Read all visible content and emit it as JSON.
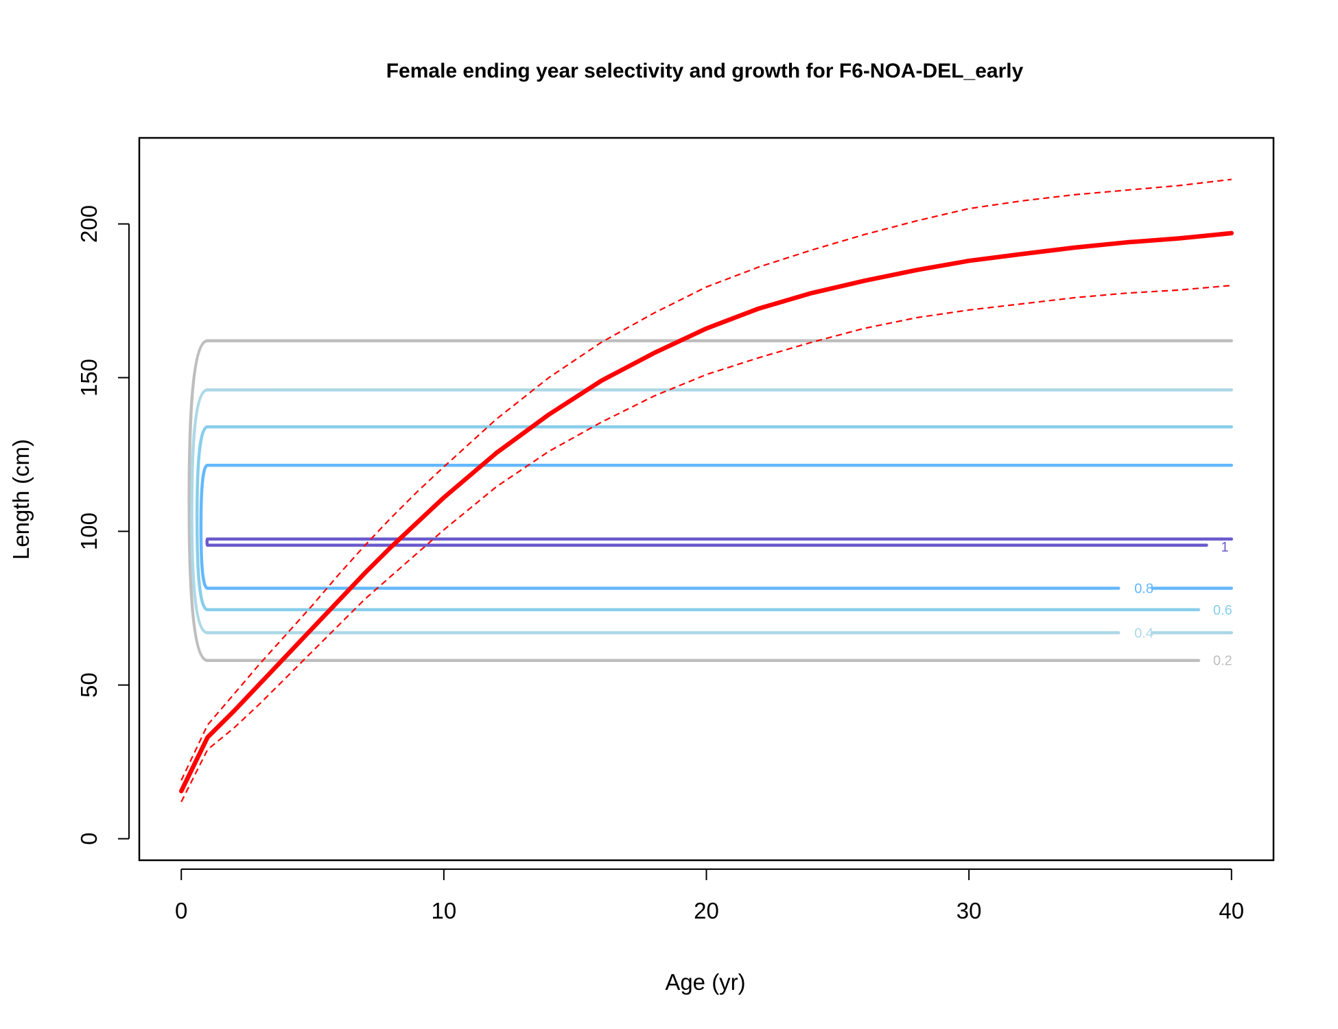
{
  "chart_data": {
    "type": "line",
    "title": "Female ending year selectivity and growth for F6-NOA-DEL_early",
    "xlabel": "Age (yr)",
    "ylabel": "Length (cm)",
    "xlim": [
      -1.6,
      41.6
    ],
    "ylim": [
      -7,
      228
    ],
    "xticks": [
      "0",
      "10",
      "20",
      "30",
      "40"
    ],
    "yticks": [
      "0",
      "50",
      "100",
      "150",
      "200"
    ],
    "legend": "none",
    "grid": false,
    "growth": {
      "color": "#ff0000",
      "ages": [
        0,
        1,
        2,
        3,
        4,
        5,
        6,
        7,
        8,
        9,
        10,
        12,
        14,
        16,
        18,
        20,
        22,
        24,
        26,
        28,
        30,
        32,
        34,
        36,
        38,
        40
      ],
      "mean": [
        15.5,
        33,
        41.5,
        50.5,
        59.5,
        68.5,
        77.5,
        86.5,
        95,
        103,
        111,
        125.5,
        138,
        149,
        158,
        166,
        172.5,
        177.5,
        181.5,
        185,
        188,
        190.2,
        192.3,
        194,
        195.3,
        197
      ],
      "upper": [
        19,
        37,
        47,
        57,
        66.5,
        76,
        86,
        95.5,
        104.5,
        113,
        121,
        136.5,
        150,
        161.5,
        171,
        179.5,
        186,
        191.5,
        196.5,
        201,
        205,
        207.5,
        209.5,
        211,
        212.5,
        214.5
      ],
      "lower": [
        12,
        29,
        36,
        44,
        52.5,
        61,
        69.5,
        78,
        85.5,
        93,
        100.5,
        114.5,
        126,
        135.5,
        144,
        151,
        156.5,
        161.5,
        166,
        169.5,
        172,
        174,
        176,
        177.5,
        178.5,
        180
      ]
    },
    "selectivity_contours": [
      {
        "level": "0.2",
        "color": "#bebebe",
        "low": 58,
        "high": 162,
        "xstart": 1,
        "xend": 40,
        "label_x": 39.3,
        "label_y": 58,
        "label_gap": [
          0,
          0
        ],
        "cap_x": 0.3
      },
      {
        "level": "0.4",
        "color": "#add8e6",
        "low": 67,
        "high": 146,
        "xstart": 1,
        "xend": 40,
        "label_x": 36.3,
        "label_y": 67,
        "label_gap": [
          35.7,
          37
        ],
        "cap_x": 0.4
      },
      {
        "level": "0.6",
        "color": "#87ceeb",
        "low": 74.5,
        "high": 134,
        "xstart": 1,
        "xend": 40,
        "label_x": 39.3,
        "label_y": 74.5,
        "label_gap": [
          0,
          0
        ],
        "cap_x": 0.6
      },
      {
        "level": "0.8",
        "color": "#63b8ff",
        "low": 81.5,
        "high": 121.5,
        "xstart": 1,
        "xend": 40,
        "label_x": 36.3,
        "label_y": 81.5,
        "label_gap": [
          35.7,
          37
        ],
        "cap_x": 0.75
      },
      {
        "level": "1",
        "color": "#6a5acd",
        "low": 95.5,
        "high": 97.5,
        "xstart": 1,
        "xend": 40,
        "label_x": 39.6,
        "label_y": 95,
        "label_gap": [
          0,
          0
        ],
        "cap_x": 0.98
      }
    ]
  }
}
